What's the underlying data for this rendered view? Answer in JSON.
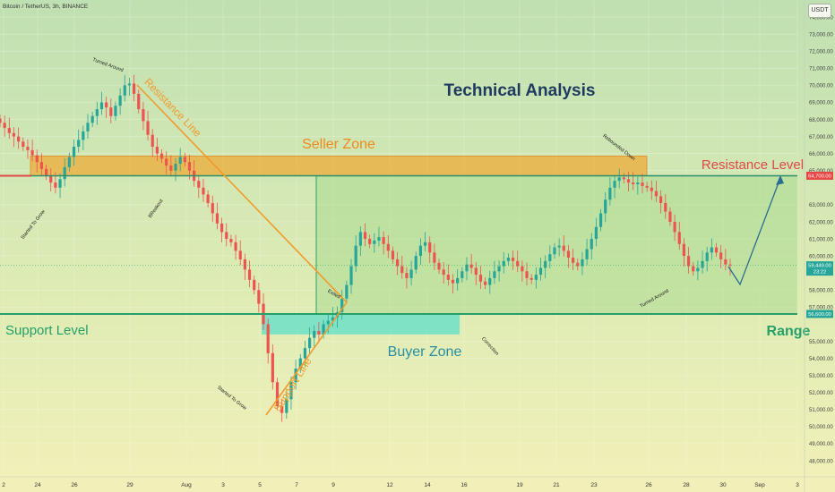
{
  "header": {
    "pair": "Bitcoin / TetherUS, 3h, BINANCE",
    "currency_button": "USDT"
  },
  "chart_data": {
    "type": "candlestick",
    "title": "Technical Analysis",
    "x_tick_labels": [
      "2",
      "24",
      "26",
      "29",
      "Aug",
      "3",
      "5",
      "7",
      "9",
      "12",
      "14",
      "16",
      "19",
      "21",
      "23",
      "26",
      "28",
      "30",
      "Sep",
      "3"
    ],
    "y_tick_labels": [
      "74,000.00",
      "73,000.00",
      "72,000.00",
      "71,000.00",
      "70,000.00",
      "69,000.00",
      "68,000.00",
      "67,000.00",
      "66,000.00",
      "65,000.00",
      "63,000.00",
      "62,000.00",
      "61,000.00",
      "60,000.00",
      "58,000.00",
      "57,000.00",
      "55,000.00",
      "54,000.00",
      "53,000.00",
      "52,000.00",
      "51,000.00",
      "50,000.00",
      "49,000.00",
      "48,000.00"
    ],
    "ylim": [
      47500,
      75000
    ],
    "price_badges": [
      {
        "label": "64,700.00",
        "value": 64700,
        "color": "#e84545"
      },
      {
        "label": "59,449.00",
        "sublabel": "23:22",
        "value": 59449,
        "color": "#26a69a"
      },
      {
        "label": "56,600.00",
        "value": 56600,
        "color": "#26a69a"
      }
    ],
    "levels": [
      {
        "name": "Resistance Level",
        "value": 64700,
        "color": "#e04848"
      },
      {
        "name": "Support Level",
        "value": 56600,
        "color": "#26a06a"
      }
    ],
    "zones": [
      {
        "name": "Seller Zone",
        "from": 64700,
        "to": 65850,
        "color": "#f0a830"
      },
      {
        "name": "Buyer Zone",
        "from": 55400,
        "to": 56600,
        "color": "#6ee0c8"
      }
    ],
    "range_label": "Range",
    "trendlines": [
      {
        "name": "Resistance Line",
        "color": "#f39a2c"
      },
      {
        "name": "Support Line",
        "color": "#f39a2c"
      }
    ],
    "annotations": [
      "Turned Around",
      "Started To Grow",
      "BReakout",
      "Exited",
      "Started To Grow",
      "Correction",
      "Rebounded Down",
      "Turned Around"
    ],
    "closes": [
      67800,
      67500,
      67200,
      67000,
      66700,
      66400,
      66200,
      65900,
      65500,
      65100,
      64700,
      64300,
      64000,
      64500,
      65200,
      65800,
      66400,
      66800,
      67300,
      67800,
      68200,
      68600,
      69000,
      68700,
      68200,
      68800,
      69400,
      70000,
      70100,
      69500,
      68600,
      67900,
      67100,
      66400,
      66000,
      65700,
      65300,
      65000,
      65400,
      65800,
      65500,
      65000,
      64400,
      64000,
      63600,
      63100,
      62500,
      61900,
      61400,
      61000,
      60800,
      60300,
      59800,
      59200,
      58600,
      58000,
      57200,
      56000,
      54300,
      52600,
      51200,
      50800,
      51600,
      52600,
      53400,
      54000,
      54600,
      55200,
      55600,
      55400,
      56000,
      56200,
      56400,
      56700,
      57500,
      58300,
      59400,
      60600,
      61400,
      61000,
      60700,
      60900,
      61100,
      60700,
      60300,
      59800,
      59400,
      59000,
      58700,
      59200,
      60000,
      60600,
      60800,
      60200,
      59600,
      59200,
      58900,
      58600,
      58400,
      58700,
      59100,
      59500,
      59300,
      58900,
      58500,
      58300,
      58700,
      59100,
      59400,
      59700,
      59900,
      59700,
      59400,
      59100,
      58700,
      58600,
      58900,
      59300,
      59700,
      60100,
      60500,
      60600,
      60300,
      59900,
      59600,
      59400,
      59800,
      60400,
      61000,
      61700,
      62500,
      63300,
      64000,
      64400,
      64600,
      64500,
      64300,
      64200,
      64300,
      64100,
      64000,
      63800,
      63500,
      63100,
      62600,
      62000,
      61400,
      60700,
      60000,
      59400,
      59100,
      59300,
      59700,
      60200,
      60500,
      60200,
      59800,
      59500,
      59449
    ]
  },
  "colors": {
    "bull": "#26a69a",
    "bear": "#ef5350",
    "title": "#1e3a5f",
    "trend": "#f39a2c",
    "projection": "#2a6e8f"
  }
}
